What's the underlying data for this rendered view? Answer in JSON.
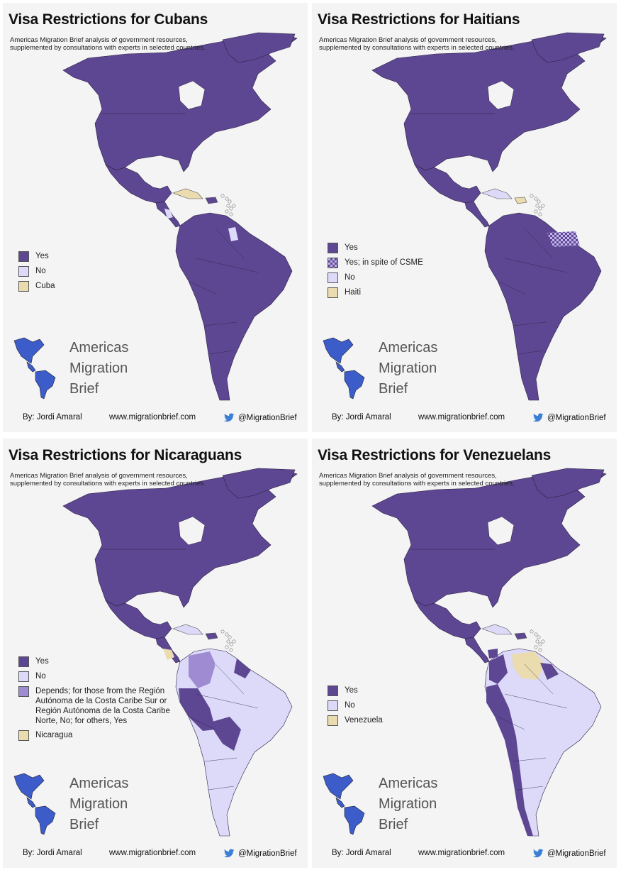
{
  "colors": {
    "yes": "#5e4792",
    "no": "#dcdaf8",
    "origin": "#eadcae",
    "depends": "#9e8bd2",
    "brand_blue": "#3b5cc9",
    "twitter_blue": "#3b7fd6"
  },
  "subtitle": "Americas Migration Brief analysis of government resources, supplemented by consultations with experts in selected countries.",
  "brand": {
    "line1": "Americas",
    "line2": "Migration",
    "line3": "Brief"
  },
  "footer": {
    "author": "By: Jordi Amaral",
    "site": "www.migrationbrief.com",
    "handle": "@MigrationBrief",
    "icon": "twitter-bird-icon"
  },
  "panels": [
    {
      "title": "Visa Restrictions for Cubans",
      "legend": [
        {
          "label": "Yes",
          "swatch": "yes"
        },
        {
          "label": "No",
          "swatch": "no"
        },
        {
          "label": "Cuba",
          "swatch": "origin"
        }
      ]
    },
    {
      "title": "Visa Restrictions for Haitians",
      "legend": [
        {
          "label": "Yes",
          "swatch": "yes"
        },
        {
          "label": "Yes; in spite of CSME",
          "swatch": "checker"
        },
        {
          "label": "No",
          "swatch": "no"
        },
        {
          "label": "Haiti",
          "swatch": "origin"
        }
      ]
    },
    {
      "title": "Visa Restrictions for Nicaraguans",
      "legend": [
        {
          "label": "Yes",
          "swatch": "yes"
        },
        {
          "label": "No",
          "swatch": "no"
        },
        {
          "label": "Depends; for those from the Región Autónoma de la Costa Caribe Sur or Región Autónoma de la Costa Caribe Norte, No; for others, Yes",
          "swatch": "depends"
        },
        {
          "label": "Nicaragua",
          "swatch": "origin"
        }
      ]
    },
    {
      "title": "Visa Restrictions for Venezuelans",
      "legend": [
        {
          "label": "Yes",
          "swatch": "yes"
        },
        {
          "label": "No",
          "swatch": "no"
        },
        {
          "label": "Venezuela",
          "swatch": "origin"
        }
      ]
    }
  ]
}
